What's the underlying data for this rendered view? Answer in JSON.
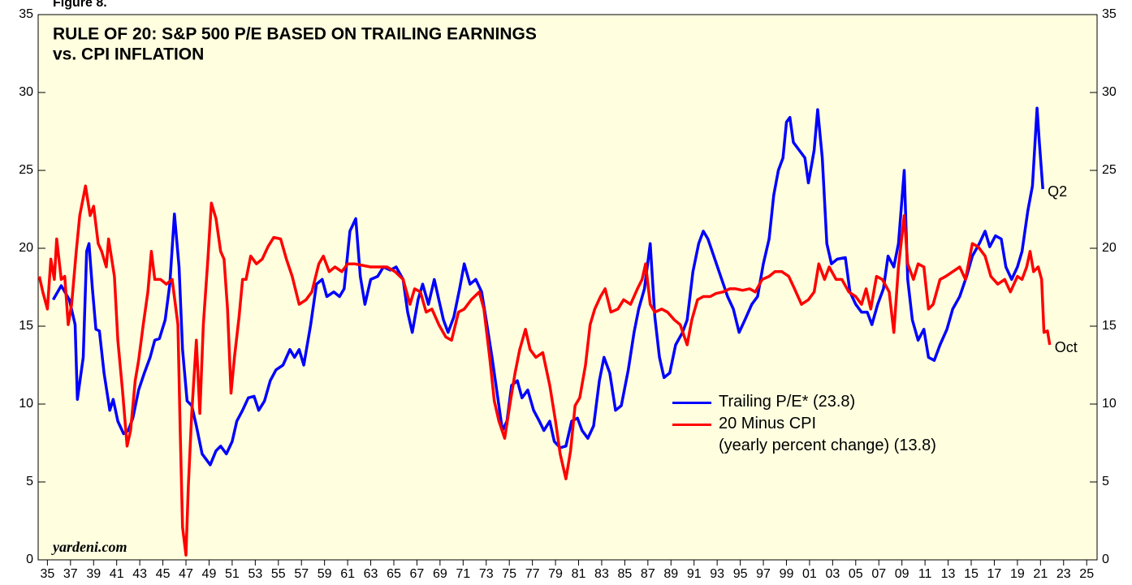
{
  "figure_label": "Figure 8.",
  "chart_data": {
    "type": "line",
    "title": [
      "RULE OF 20: S&P 500 P/E BASED ON TRAILING EARNINGS",
      "vs. CPI INFLATION"
    ],
    "source": "yardeni.com",
    "xlim": [
      1934.2,
      2025.9
    ],
    "ylim": [
      0,
      35
    ],
    "yticks": [
      0,
      5,
      10,
      15,
      20,
      25,
      30,
      35
    ],
    "xticks": [
      {
        "value": 1935,
        "label": "35"
      },
      {
        "value": 1937,
        "label": "37"
      },
      {
        "value": 1939,
        "label": "39"
      },
      {
        "value": 1941,
        "label": "41"
      },
      {
        "value": 1943,
        "label": "43"
      },
      {
        "value": 1945,
        "label": "45"
      },
      {
        "value": 1947,
        "label": "47"
      },
      {
        "value": 1949,
        "label": "49"
      },
      {
        "value": 1951,
        "label": "51"
      },
      {
        "value": 1953,
        "label": "53"
      },
      {
        "value": 1955,
        "label": "55"
      },
      {
        "value": 1957,
        "label": "57"
      },
      {
        "value": 1959,
        "label": "59"
      },
      {
        "value": 1961,
        "label": "61"
      },
      {
        "value": 1963,
        "label": "63"
      },
      {
        "value": 1965,
        "label": "65"
      },
      {
        "value": 1967,
        "label": "67"
      },
      {
        "value": 1969,
        "label": "69"
      },
      {
        "value": 1971,
        "label": "71"
      },
      {
        "value": 1973,
        "label": "73"
      },
      {
        "value": 1975,
        "label": "75"
      },
      {
        "value": 1977,
        "label": "77"
      },
      {
        "value": 1979,
        "label": "79"
      },
      {
        "value": 1981,
        "label": "81"
      },
      {
        "value": 1983,
        "label": "83"
      },
      {
        "value": 1985,
        "label": "85"
      },
      {
        "value": 1987,
        "label": "87"
      },
      {
        "value": 1989,
        "label": "89"
      },
      {
        "value": 1991,
        "label": "91"
      },
      {
        "value": 1993,
        "label": "93"
      },
      {
        "value": 1995,
        "label": "95"
      },
      {
        "value": 1997,
        "label": "97"
      },
      {
        "value": 1999,
        "label": "99"
      },
      {
        "value": 2001,
        "label": "01"
      },
      {
        "value": 2003,
        "label": "03"
      },
      {
        "value": 2005,
        "label": "05"
      },
      {
        "value": 2007,
        "label": "07"
      },
      {
        "value": 2009,
        "label": "09"
      },
      {
        "value": 2011,
        "label": "11"
      },
      {
        "value": 2013,
        "label": "13"
      },
      {
        "value": 2015,
        "label": "15"
      },
      {
        "value": 2017,
        "label": "17"
      },
      {
        "value": 2019,
        "label": "19"
      },
      {
        "value": 2021,
        "label": "21"
      },
      {
        "value": 2023,
        "label": "23"
      },
      {
        "value": 2025,
        "label": "25"
      }
    ],
    "annotations": [
      {
        "text": "Q2",
        "color": "#0000ff"
      },
      {
        "text": "Oct",
        "color": "#ff0000"
      }
    ],
    "series": [
      {
        "name": "Trailing P/E* (23.8)",
        "color": "#0000ff",
        "x": [
          1935.5,
          1936.2,
          1936.9,
          1937.4,
          1937.6,
          1938.1,
          1938.4,
          1938.6,
          1938.9,
          1939.2,
          1939.5,
          1939.9,
          1940.4,
          1940.7,
          1941.1,
          1941.6,
          1942.0,
          1942.4,
          1942.9,
          1943.4,
          1943.9,
          1944.3,
          1944.7,
          1945.2,
          1945.6,
          1946.0,
          1946.4,
          1946.7,
          1947.1,
          1947.5,
          1947.9,
          1948.4,
          1948.7,
          1949.1,
          1949.6,
          1950.0,
          1950.5,
          1951.0,
          1951.4,
          1951.9,
          1952.4,
          1952.9,
          1953.3,
          1953.8,
          1954.3,
          1954.8,
          1955.4,
          1956.0,
          1956.4,
          1956.8,
          1957.2,
          1957.8,
          1958.3,
          1958.8,
          1959.2,
          1959.8,
          1960.3,
          1960.7,
          1961.2,
          1961.7,
          1962.1,
          1962.5,
          1963.0,
          1963.6,
          1964.1,
          1964.7,
          1965.2,
          1965.8,
          1966.2,
          1966.6,
          1967.1,
          1967.5,
          1968.0,
          1968.5,
          1968.9,
          1969.3,
          1969.7,
          1970.2,
          1970.7,
          1971.1,
          1971.6,
          1972.1,
          1972.6,
          1973.0,
          1973.5,
          1974.0,
          1974.4,
          1974.8,
          1975.2,
          1975.7,
          1976.1,
          1976.6,
          1977.1,
          1977.6,
          1978.0,
          1978.5,
          1978.9,
          1979.4,
          1979.9,
          1980.4,
          1980.9,
          1981.3,
          1981.8,
          1982.3,
          1982.8,
          1983.2,
          1983.7,
          1984.2,
          1984.7,
          1985.3,
          1985.8,
          1986.2,
          1986.7,
          1987.2,
          1987.6,
          1988.0,
          1988.4,
          1988.9,
          1989.4,
          1990.0,
          1990.4,
          1990.9,
          1991.4,
          1991.8,
          1992.2,
          1992.8,
          1993.4,
          1993.9,
          1994.4,
          1994.9,
          1995.4,
          1996.0,
          1996.5,
          1997.0,
          1997.5,
          1997.9,
          1998.3,
          1998.7,
          1999.0,
          1999.3,
          1999.6,
          2000.1,
          2000.6,
          2000.9,
          2001.4,
          2001.7,
          2002.1,
          2002.5,
          2002.9,
          2003.4,
          2004.1,
          2004.5,
          2005.0,
          2005.5,
          2006.0,
          2006.4,
          2006.9,
          2007.4,
          2007.8,
          2008.3,
          2008.7,
          2009.2,
          2009.5,
          2009.9,
          2010.4,
          2010.9,
          2011.3,
          2011.8,
          2012.3,
          2012.9,
          2013.4,
          2014.0,
          2014.6,
          2015.1,
          2015.7,
          2016.2,
          2016.6,
          2017.1,
          2017.6,
          2018.0,
          2018.5,
          2019.0,
          2019.4,
          2019.9,
          2020.3,
          2020.7,
          2020.9,
          2021.2
        ],
        "values": [
          16.7,
          17.6,
          16.7,
          15.1,
          10.3,
          13,
          19.8,
          20.3,
          17.4,
          14.8,
          14.7,
          12,
          9.6,
          10.3,
          8.9,
          8.1,
          8.3,
          9.1,
          10.9,
          12,
          13,
          14.1,
          14.2,
          15.4,
          17.7,
          22.2,
          18.8,
          13.5,
          10.2,
          9.9,
          8.6,
          6.8,
          6.5,
          6.1,
          7.0,
          7.3,
          6.8,
          7.6,
          8.9,
          9.6,
          10.4,
          10.5,
          9.6,
          10.2,
          11.5,
          12.2,
          12.5,
          13.5,
          13,
          13.5,
          12.5,
          15.1,
          17.7,
          18,
          16.9,
          17.2,
          16.9,
          17.4,
          21.1,
          21.9,
          18.2,
          16.4,
          18,
          18.2,
          18.8,
          18.6,
          18.8,
          18,
          15.9,
          14.6,
          16.7,
          17.7,
          16.4,
          18,
          16.7,
          15.4,
          14.6,
          15.6,
          17.4,
          19,
          17.7,
          18,
          17.2,
          15.4,
          13,
          10.4,
          8.3,
          8.9,
          11.2,
          11.5,
          10.4,
          10.9,
          9.6,
          8.9,
          8.3,
          8.9,
          7.6,
          7.2,
          7.3,
          8.9,
          9.1,
          8.3,
          7.8,
          8.6,
          11.5,
          13,
          12,
          9.6,
          9.9,
          12.2,
          14.6,
          16.1,
          17.4,
          20.3,
          15.6,
          13,
          11.7,
          12,
          13.8,
          14.6,
          15.4,
          18.5,
          20.3,
          21.1,
          20.6,
          19.3,
          18,
          16.9,
          16.1,
          14.6,
          15.4,
          16.4,
          16.9,
          19,
          20.6,
          23.4,
          25,
          25.8,
          28.1,
          28.4,
          26.8,
          26.3,
          25.8,
          24.2,
          26.3,
          28.9,
          25.8,
          20.3,
          19,
          19.3,
          19.4,
          17.2,
          16.4,
          15.9,
          15.9,
          15.1,
          16.4,
          17.4,
          19.5,
          18.8,
          20.3,
          25,
          18,
          15.4,
          14.1,
          14.8,
          13,
          12.8,
          13.8,
          14.8,
          16.1,
          16.9,
          18.2,
          19.5,
          20.3,
          21.1,
          20.1,
          20.8,
          20.6,
          18.8,
          18,
          18.8,
          19.8,
          22.4,
          24,
          29,
          26.8,
          23.8
        ]
      },
      {
        "name": "20 Minus CPI\n(yearly percent change) (13.8)",
        "color": "#ff0000",
        "x": [
          1934.3,
          1934.6,
          1935.0,
          1935.3,
          1935.6,
          1935.8,
          1936.2,
          1936.5,
          1936.8,
          1937.1,
          1937.5,
          1937.8,
          1938.3,
          1938.7,
          1939.0,
          1939.4,
          1939.7,
          1940.1,
          1940.3,
          1940.8,
          1941.1,
          1941.5,
          1941.9,
          1942.2,
          1942.6,
          1942.9,
          1943.3,
          1943.7,
          1944.0,
          1944.3,
          1944.8,
          1945.3,
          1945.8,
          1946.3,
          1946.5,
          1946.7,
          1947.0,
          1947.2,
          1947.5,
          1947.9,
          1948.2,
          1948.5,
          1948.9,
          1949.2,
          1949.6,
          1950.0,
          1950.3,
          1950.6,
          1950.9,
          1951.2,
          1951.6,
          1951.9,
          1952.2,
          1952.6,
          1953.1,
          1953.6,
          1954.1,
          1954.6,
          1955.2,
          1955.7,
          1956.2,
          1956.8,
          1957.4,
          1957.9,
          1958.5,
          1958.9,
          1959.4,
          1959.9,
          1960.5,
          1961.0,
          1961.6,
          1962.3,
          1963.0,
          1963.7,
          1964.4,
          1965.1,
          1965.8,
          1966.4,
          1966.8,
          1967.3,
          1967.8,
          1968.3,
          1968.9,
          1969.5,
          1970.0,
          1970.6,
          1971.1,
          1971.7,
          1972.4,
          1972.8,
          1973.3,
          1973.7,
          1974.1,
          1974.6,
          1975.1,
          1975.5,
          1975.9,
          1976.4,
          1976.8,
          1977.3,
          1977.9,
          1978.5,
          1979.0,
          1979.4,
          1979.9,
          1980.3,
          1980.7,
          1981.1,
          1981.6,
          1982.0,
          1982.4,
          1982.9,
          1983.3,
          1983.8,
          1984.4,
          1984.9,
          1985.5,
          1986.1,
          1986.5,
          1986.8,
          1987.2,
          1987.6,
          1988.2,
          1988.7,
          1989.3,
          1989.8,
          1990.4,
          1990.8,
          1991.3,
          1991.8,
          1992.4,
          1992.9,
          1993.5,
          1994.1,
          1994.6,
          1995.2,
          1995.8,
          1996.3,
          1996.9,
          1997.5,
          1998.0,
          1998.6,
          1999.2,
          1999.7,
          2000.3,
          2000.9,
          2001.4,
          2001.8,
          2002.3,
          2002.7,
          2003.3,
          2003.8,
          2004.4,
          2005.0,
          2005.5,
          2005.9,
          2006.3,
          2006.8,
          2007.3,
          2007.9,
          2008.3,
          2008.7,
          2009.2,
          2009.5,
          2010.0,
          2010.4,
          2010.9,
          2011.3,
          2011.7,
          2012.3,
          2012.8,
          2013.4,
          2014.0,
          2014.5,
          2015.1,
          2015.6,
          2016.2,
          2016.7,
          2017.3,
          2017.9,
          2018.4,
          2019.0,
          2019.4,
          2019.8,
          2020.1,
          2020.4,
          2020.8,
          2021.1,
          2021.3,
          2021.6,
          2021.8
        ],
        "values": [
          18.2,
          17.2,
          16.1,
          19.3,
          18,
          20.6,
          18,
          18.2,
          15.1,
          16.4,
          19.8,
          22.1,
          24,
          22.1,
          22.7,
          20.3,
          19.8,
          18.8,
          20.6,
          18.2,
          14.1,
          10.9,
          7.3,
          8.3,
          11.5,
          12.8,
          15.1,
          17.2,
          19.8,
          18,
          18,
          17.7,
          18,
          15.1,
          8.3,
          2.1,
          0.3,
          4.7,
          9.4,
          14.1,
          9.4,
          15.1,
          19.3,
          22.9,
          21.9,
          19.8,
          19.3,
          16.1,
          10.7,
          13,
          15.6,
          18,
          18,
          19.5,
          19,
          19.3,
          20.1,
          20.7,
          20.6,
          19.3,
          18.2,
          16.4,
          16.7,
          17.2,
          19,
          19.5,
          18.5,
          18.8,
          18.5,
          19,
          19,
          18.9,
          18.8,
          18.8,
          18.8,
          18.5,
          18,
          16.4,
          17.4,
          17.2,
          15.9,
          16.1,
          15.1,
          14.3,
          14.1,
          15.9,
          16.1,
          16.7,
          17.2,
          16.1,
          13,
          10.2,
          8.9,
          7.8,
          10.2,
          12,
          13.5,
          14.8,
          13.5,
          13,
          13.3,
          11.2,
          8.9,
          6.8,
          5.2,
          7,
          9.9,
          10.4,
          12.5,
          15.1,
          16.1,
          16.9,
          17.4,
          15.9,
          16.1,
          16.7,
          16.4,
          17.4,
          18,
          19,
          16.4,
          15.9,
          16.1,
          15.9,
          15.4,
          15.1,
          13.8,
          15.4,
          16.7,
          16.9,
          16.9,
          17.1,
          17.2,
          17.4,
          17.4,
          17.3,
          17.4,
          17.2,
          18,
          18.2,
          18.5,
          18.5,
          18.2,
          17.4,
          16.4,
          16.7,
          17.2,
          19,
          18,
          18.8,
          18,
          18,
          17.2,
          16.9,
          16.4,
          17.4,
          16.1,
          18.2,
          18,
          17.2,
          14.6,
          18.8,
          22.1,
          19,
          18,
          19,
          18.8,
          16.1,
          16.4,
          18,
          18.2,
          18.5,
          18.8,
          18,
          20.3,
          20.1,
          19.5,
          18.2,
          17.7,
          18,
          17.2,
          18.2,
          18,
          18.8,
          19.8,
          18.5,
          18.8,
          18,
          14.6,
          14.7,
          13.8
        ]
      }
    ]
  }
}
